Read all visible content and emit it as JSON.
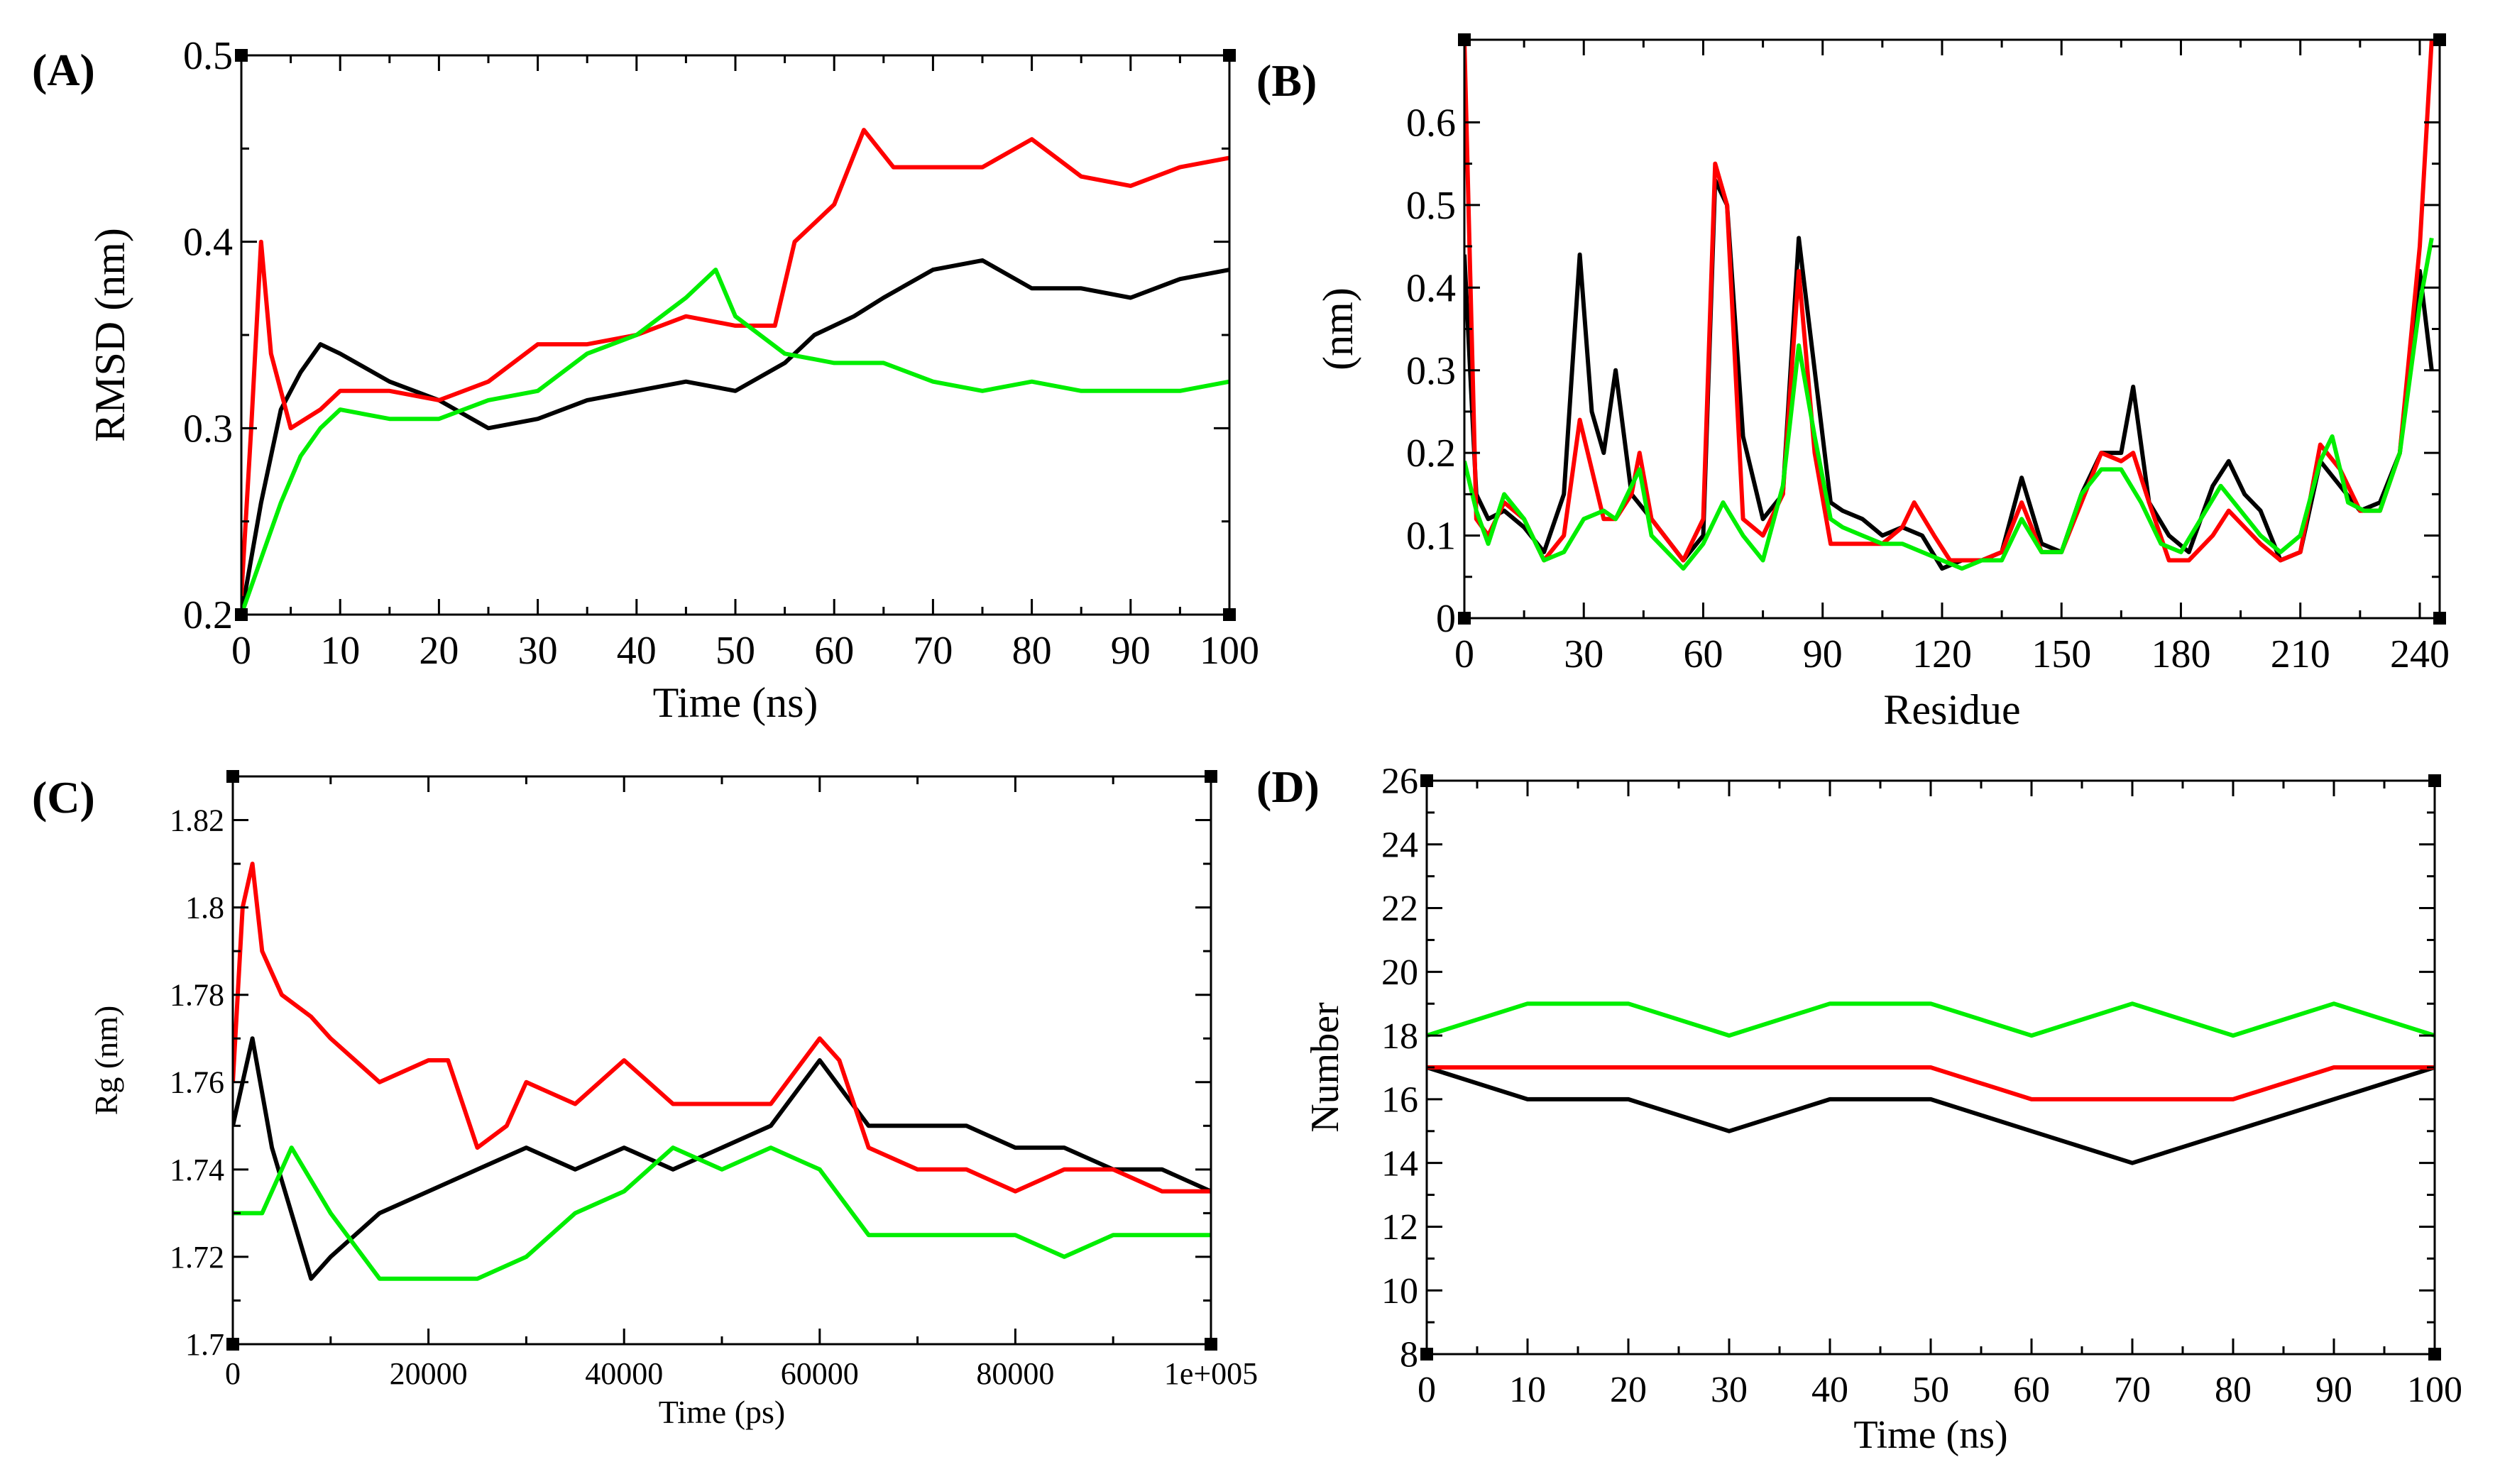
{
  "colors": {
    "series_1": "#000000",
    "series_2": "#ff0000",
    "series_3": "#00ee00"
  },
  "chart_data": [
    {
      "panel": "(A)",
      "type": "line",
      "title": "",
      "xlabel": "Time (ns)",
      "ylabel": "RMSD (nm)",
      "xlim": [
        0,
        100
      ],
      "ylim": [
        0.2,
        0.5
      ],
      "xticks": [
        0,
        10,
        20,
        30,
        40,
        50,
        60,
        70,
        80,
        90,
        100
      ],
      "yticks": [
        0.2,
        0.3,
        0.4,
        0.5
      ],
      "ytick_labels": [
        "0.2",
        "0.3",
        "0.4",
        "0.5"
      ],
      "legend": "none",
      "grid": false,
      "series": [
        {
          "color": "#000000",
          "x": [
            0,
            2,
            4,
            6,
            8,
            10,
            15,
            20,
            25,
            30,
            35,
            40,
            45,
            50,
            55,
            58,
            62,
            65,
            70,
            75,
            80,
            85,
            90,
            95,
            100
          ],
          "values": [
            0.2,
            0.26,
            0.31,
            0.33,
            0.345,
            0.34,
            0.325,
            0.315,
            0.3,
            0.305,
            0.315,
            0.32,
            0.325,
            0.32,
            0.335,
            0.35,
            0.36,
            0.37,
            0.385,
            0.39,
            0.375,
            0.375,
            0.37,
            0.38,
            0.385
          ]
        },
        {
          "color": "#ff0000",
          "x": [
            0,
            1,
            2,
            3,
            5,
            8,
            10,
            15,
            20,
            25,
            30,
            35,
            40,
            45,
            50,
            54,
            56,
            58,
            60,
            63,
            66,
            70,
            75,
            80,
            85,
            90,
            95,
            100
          ],
          "values": [
            0.21,
            0.3,
            0.4,
            0.34,
            0.3,
            0.31,
            0.32,
            0.32,
            0.315,
            0.325,
            0.345,
            0.345,
            0.35,
            0.36,
            0.355,
            0.355,
            0.4,
            0.41,
            0.42,
            0.46,
            0.44,
            0.44,
            0.44,
            0.455,
            0.435,
            0.43,
            0.44,
            0.445
          ]
        },
        {
          "color": "#00ee00",
          "x": [
            0,
            2,
            4,
            6,
            8,
            10,
            15,
            20,
            25,
            30,
            35,
            40,
            45,
            48,
            50,
            55,
            60,
            65,
            70,
            75,
            80,
            85,
            90,
            95,
            100
          ],
          "values": [
            0.2,
            0.23,
            0.26,
            0.285,
            0.3,
            0.31,
            0.305,
            0.305,
            0.315,
            0.32,
            0.34,
            0.35,
            0.37,
            0.385,
            0.36,
            0.34,
            0.335,
            0.335,
            0.325,
            0.32,
            0.325,
            0.32,
            0.32,
            0.32,
            0.325
          ]
        }
      ]
    },
    {
      "panel": "(B)",
      "type": "line",
      "title": "",
      "xlabel": "Residue",
      "ylabel": "(nm)",
      "xlim": [
        0,
        245
      ],
      "ylim": [
        0,
        0.7
      ],
      "xticks": [
        0,
        30,
        60,
        90,
        120,
        150,
        180,
        210,
        240
      ],
      "yticks": [
        0,
        0.1,
        0.2,
        0.3,
        0.4,
        0.5,
        0.6
      ],
      "ytick_labels": [
        "0",
        "0.1",
        "0.2",
        "0.3",
        "0.4",
        "0.5",
        "0.6"
      ],
      "legend": "none",
      "grid": false,
      "series": [
        {
          "color": "#000000",
          "x": [
            0,
            3,
            6,
            10,
            15,
            20,
            25,
            29,
            32,
            35,
            38,
            42,
            47,
            55,
            60,
            63,
            66,
            70,
            75,
            80,
            84,
            88,
            92,
            95,
            100,
            105,
            110,
            115,
            120,
            125,
            130,
            135,
            140,
            145,
            150,
            155,
            160,
            165,
            168,
            172,
            177,
            182,
            188,
            192,
            196,
            200,
            205,
            210,
            215,
            220,
            225,
            230,
            235,
            240,
            243
          ],
          "values": [
            0.44,
            0.15,
            0.12,
            0.13,
            0.11,
            0.08,
            0.15,
            0.44,
            0.25,
            0.2,
            0.3,
            0.15,
            0.12,
            0.07,
            0.1,
            0.53,
            0.5,
            0.22,
            0.12,
            0.15,
            0.46,
            0.3,
            0.14,
            0.13,
            0.12,
            0.1,
            0.11,
            0.1,
            0.06,
            0.07,
            0.07,
            0.08,
            0.17,
            0.09,
            0.08,
            0.15,
            0.2,
            0.2,
            0.28,
            0.14,
            0.1,
            0.08,
            0.16,
            0.19,
            0.15,
            0.13,
            0.07,
            0.08,
            0.19,
            0.16,
            0.13,
            0.14,
            0.2,
            0.42,
            0.3
          ]
        },
        {
          "color": "#ff0000",
          "x": [
            0,
            3,
            6,
            10,
            15,
            20,
            25,
            29,
            32,
            35,
            38,
            42,
            44,
            47,
            55,
            60,
            63,
            66,
            70,
            75,
            80,
            84,
            88,
            92,
            95,
            100,
            105,
            110,
            113,
            118,
            122,
            126,
            130,
            135,
            140,
            145,
            150,
            155,
            160,
            165,
            168,
            172,
            177,
            182,
            188,
            192,
            196,
            200,
            205,
            210,
            215,
            220,
            225,
            230,
            235,
            240,
            243
          ],
          "values": [
            0.7,
            0.12,
            0.1,
            0.14,
            0.12,
            0.07,
            0.1,
            0.24,
            0.18,
            0.12,
            0.12,
            0.15,
            0.2,
            0.12,
            0.07,
            0.12,
            0.55,
            0.5,
            0.12,
            0.1,
            0.15,
            0.42,
            0.2,
            0.09,
            0.09,
            0.09,
            0.09,
            0.11,
            0.14,
            0.1,
            0.07,
            0.07,
            0.07,
            0.08,
            0.14,
            0.08,
            0.08,
            0.14,
            0.2,
            0.19,
            0.2,
            0.14,
            0.07,
            0.07,
            0.1,
            0.13,
            0.11,
            0.09,
            0.07,
            0.08,
            0.21,
            0.18,
            0.13,
            0.13,
            0.2,
            0.45,
            0.7
          ]
        },
        {
          "color": "#00ee00",
          "x": [
            0,
            3,
            6,
            10,
            15,
            20,
            25,
            30,
            35,
            38,
            42,
            44,
            47,
            55,
            60,
            65,
            70,
            75,
            80,
            84,
            88,
            92,
            95,
            100,
            105,
            110,
            115,
            120,
            125,
            130,
            135,
            140,
            145,
            150,
            155,
            160,
            165,
            170,
            175,
            180,
            185,
            190,
            195,
            200,
            205,
            210,
            215,
            218,
            222,
            226,
            230,
            235,
            240,
            243
          ],
          "values": [
            0.19,
            0.13,
            0.09,
            0.15,
            0.12,
            0.07,
            0.08,
            0.12,
            0.13,
            0.12,
            0.16,
            0.18,
            0.1,
            0.06,
            0.09,
            0.14,
            0.1,
            0.07,
            0.16,
            0.33,
            0.22,
            0.12,
            0.11,
            0.1,
            0.09,
            0.09,
            0.08,
            0.07,
            0.06,
            0.07,
            0.07,
            0.12,
            0.08,
            0.08,
            0.15,
            0.18,
            0.18,
            0.14,
            0.09,
            0.08,
            0.12,
            0.16,
            0.13,
            0.1,
            0.08,
            0.1,
            0.19,
            0.22,
            0.14,
            0.13,
            0.13,
            0.2,
            0.38,
            0.46
          ]
        }
      ]
    },
    {
      "panel": "(C)",
      "type": "line",
      "title": "",
      "xlabel": "Time (ps)",
      "ylabel": "Rg (nm)",
      "xlim": [
        0,
        100000
      ],
      "ylim": [
        1.7,
        1.83
      ],
      "xticks": [
        0,
        20000,
        40000,
        60000,
        80000,
        100000
      ],
      "xtick_labels": [
        "0",
        "20000",
        "40000",
        "60000",
        "80000",
        "1e+005"
      ],
      "yticks": [
        1.7,
        1.72,
        1.74,
        1.76,
        1.78,
        1.8,
        1.82
      ],
      "ytick_labels": [
        "1.7",
        "1.72",
        "1.74",
        "1.76",
        "1.78",
        "1.8",
        "1.82"
      ],
      "legend": "none",
      "grid": false,
      "series": [
        {
          "color": "#000000",
          "x": [
            0,
            2000,
            4000,
            6000,
            8000,
            10000,
            15000,
            20000,
            25000,
            30000,
            35000,
            40000,
            45000,
            50000,
            55000,
            60000,
            65000,
            70000,
            75000,
            80000,
            85000,
            90000,
            95000,
            100000
          ],
          "values": [
            1.75,
            1.77,
            1.745,
            1.73,
            1.715,
            1.72,
            1.73,
            1.735,
            1.74,
            1.745,
            1.74,
            1.745,
            1.74,
            1.745,
            1.75,
            1.765,
            1.75,
            1.75,
            1.75,
            1.745,
            1.745,
            1.74,
            1.74,
            1.735
          ]
        },
        {
          "color": "#ff0000",
          "x": [
            0,
            1000,
            2000,
            3000,
            5000,
            8000,
            10000,
            15000,
            20000,
            22000,
            25000,
            28000,
            30000,
            35000,
            40000,
            45000,
            50000,
            55000,
            60000,
            62000,
            65000,
            70000,
            75000,
            80000,
            85000,
            90000,
            95000,
            100000
          ],
          "values": [
            1.76,
            1.8,
            1.81,
            1.79,
            1.78,
            1.775,
            1.77,
            1.76,
            1.765,
            1.765,
            1.745,
            1.75,
            1.76,
            1.755,
            1.765,
            1.755,
            1.755,
            1.755,
            1.77,
            1.765,
            1.745,
            1.74,
            1.74,
            1.735,
            1.74,
            1.74,
            1.735,
            1.735
          ]
        },
        {
          "color": "#00ee00",
          "x": [
            0,
            3000,
            6000,
            10000,
            15000,
            20000,
            25000,
            30000,
            35000,
            40000,
            45000,
            50000,
            55000,
            60000,
            65000,
            70000,
            75000,
            80000,
            85000,
            90000,
            95000,
            100000
          ],
          "values": [
            1.73,
            1.73,
            1.745,
            1.73,
            1.715,
            1.715,
            1.715,
            1.72,
            1.73,
            1.735,
            1.745,
            1.74,
            1.745,
            1.74,
            1.725,
            1.725,
            1.725,
            1.725,
            1.72,
            1.725,
            1.725,
            1.725
          ]
        }
      ]
    },
    {
      "panel": "(D)",
      "type": "line",
      "title": "",
      "xlabel": "Time (ns)",
      "ylabel": "Number",
      "xlim": [
        0,
        100
      ],
      "ylim": [
        8,
        26
      ],
      "xticks": [
        0,
        10,
        20,
        30,
        40,
        50,
        60,
        70,
        80,
        90,
        100
      ],
      "yticks": [
        8,
        10,
        12,
        14,
        16,
        18,
        20,
        22,
        24,
        26
      ],
      "legend": "none",
      "grid": false,
      "series": [
        {
          "color": "#000000",
          "x": [
            0,
            10,
            20,
            30,
            40,
            50,
            60,
            70,
            80,
            90,
            100
          ],
          "values": [
            17,
            16,
            16,
            15,
            16,
            16,
            15,
            14,
            15,
            16,
            17
          ]
        },
        {
          "color": "#ff0000",
          "x": [
            0,
            10,
            20,
            30,
            40,
            50,
            60,
            70,
            80,
            90,
            100
          ],
          "values": [
            17,
            17,
            17,
            17,
            17,
            17,
            16,
            16,
            16,
            17,
            17
          ]
        },
        {
          "color": "#00ee00",
          "x": [
            0,
            10,
            20,
            30,
            40,
            50,
            60,
            70,
            80,
            90,
            100
          ],
          "values": [
            18,
            19,
            19,
            18,
            19,
            19,
            18,
            19,
            18,
            19,
            18
          ]
        }
      ]
    }
  ]
}
